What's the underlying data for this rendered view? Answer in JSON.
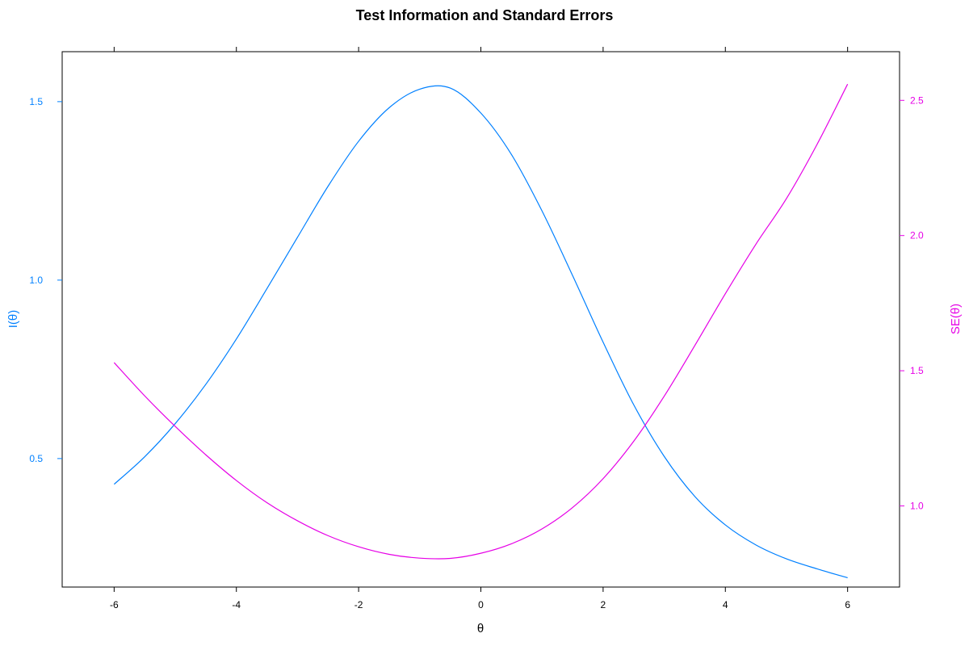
{
  "chart_data": {
    "type": "line",
    "title": "Test Information and Standard Errors",
    "xlabel": "θ",
    "ylabel_left": "I(θ)",
    "ylabel_right": "SE(θ)",
    "xlim": [
      -6.85,
      6.85
    ],
    "ylim_left": [
      0.14,
      1.64
    ],
    "ylim_right": [
      0.7,
      2.68
    ],
    "x_ticks": [
      -6,
      -4,
      -2,
      0,
      2,
      4,
      6
    ],
    "y_left_ticks": [
      0.5,
      1.0,
      1.5
    ],
    "y_left_tick_labels": [
      "0.5",
      "1.0",
      "1.5"
    ],
    "y_right_ticks": [
      1.0,
      1.5,
      2.0,
      2.5
    ],
    "y_right_tick_labels": [
      "1.0",
      "1.5",
      "2.0",
      "2.5"
    ],
    "grid": false,
    "series": [
      {
        "axis": "left",
        "color": "#0080ff",
        "x": [
          -6,
          -5.5,
          -5,
          -4.5,
          -4,
          -3.5,
          -3,
          -2.5,
          -2,
          -1.5,
          -1,
          -0.5,
          0,
          0.5,
          1,
          1.5,
          2,
          2.5,
          3,
          3.5,
          4,
          4.5,
          5,
          5.5,
          6
        ],
        "values": [
          0.428,
          0.505,
          0.598,
          0.708,
          0.835,
          0.976,
          1.12,
          1.263,
          1.389,
          1.483,
          1.535,
          1.538,
          1.468,
          1.352,
          1.194,
          1.013,
          0.826,
          0.651,
          0.506,
          0.394,
          0.314,
          0.258,
          0.219,
          0.191,
          0.166
        ]
      },
      {
        "axis": "right",
        "color": "#e600e6",
        "x": [
          -6,
          -5.5,
          -5,
          -4.5,
          -4,
          -3.5,
          -3,
          -2.5,
          -2,
          -1.5,
          -1,
          -0.5,
          0,
          0.5,
          1,
          1.5,
          2,
          2.5,
          3,
          3.5,
          4,
          4.5,
          5,
          5.5,
          6
        ],
        "values": [
          1.53,
          1.407,
          1.294,
          1.189,
          1.094,
          1.012,
          0.945,
          0.89,
          0.849,
          0.821,
          0.807,
          0.806,
          0.825,
          0.86,
          0.915,
          0.994,
          1.101,
          1.239,
          1.406,
          1.593,
          1.785,
          1.968,
          2.137,
          2.337,
          2.56
        ]
      }
    ]
  }
}
